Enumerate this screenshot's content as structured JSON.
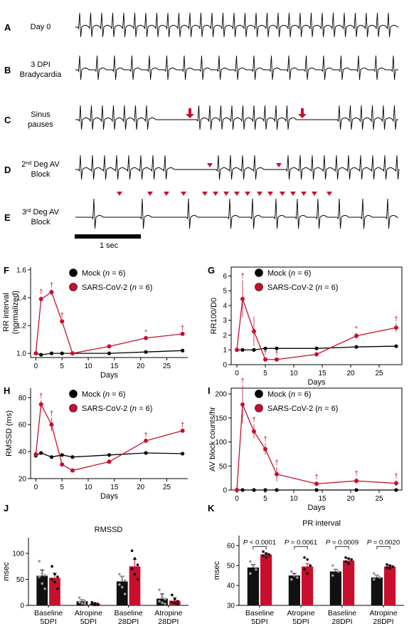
{
  "colors": {
    "mock": "#000000",
    "sars": "#c8102e",
    "sig": "#c8102e"
  },
  "ecg": {
    "panels": [
      {
        "letter": "A",
        "label_lines": [
          "Day 0"
        ],
        "type": "normal"
      },
      {
        "letter": "B",
        "label_lines": [
          "3 DPI",
          "Bradycardia"
        ],
        "type": "brady"
      },
      {
        "letter": "C",
        "label_lines": [
          "Sinus",
          "pauses"
        ],
        "type": "pauses"
      },
      {
        "letter": "D",
        "label_lines": [
          "2nd Deg AV",
          "Block"
        ],
        "type": "avb2"
      },
      {
        "letter": "E",
        "label_lines": [
          "3rd Deg AV",
          "Block"
        ],
        "type": "avb3"
      }
    ],
    "scale_label": "1 sec"
  },
  "chart_data": [
    {
      "panel": "F",
      "type": "line",
      "xlabel": "Days",
      "ylabel": "RR interval (normalized)",
      "xlim": [
        -1,
        29
      ],
      "ylim": [
        0.97,
        1.62
      ],
      "xticks": [
        0,
        5,
        10,
        15,
        20,
        25
      ],
      "yticks": [
        1.0,
        1.2,
        1.4,
        1.6
      ],
      "ytick_labels": [
        "1.0",
        "1.2",
        "1.4",
        "1.6"
      ],
      "box": false,
      "legend": [
        "Mock (n = 6)",
        "SARS-CoV-2 (n = 6)"
      ],
      "series": [
        {
          "name": "Mock (n = 6)",
          "x": [
            0,
            1,
            3,
            5,
            7,
            14,
            21,
            28
          ],
          "y": [
            1.0,
            0.99,
            1.0,
            1.0,
            1.0,
            1.0,
            1.01,
            1.02
          ]
        },
        {
          "name": "SARS-CoV-2 (n = 6)",
          "x": [
            0,
            1,
            3,
            5,
            7,
            14,
            21,
            28
          ],
          "y": [
            1.0,
            1.39,
            1.44,
            1.23,
            1.0,
            1.05,
            1.11,
            1.14
          ],
          "err": [
            0,
            0.02,
            0.02,
            0.01,
            0,
            0.005,
            0.01,
            0.01
          ]
        }
      ],
      "significance": [
        {
          "x": 1,
          "mark": "†"
        },
        {
          "x": 3,
          "mark": "†"
        },
        {
          "x": 5,
          "mark": "†"
        },
        {
          "x": 21,
          "mark": "*"
        },
        {
          "x": 28,
          "mark": "†"
        }
      ]
    },
    {
      "panel": "G",
      "type": "line",
      "xlabel": "Days",
      "ylabel": "RR100/D0",
      "xlim": [
        -1,
        29
      ],
      "ylim": [
        0,
        6.6
      ],
      "xticks": [
        0,
        5,
        10,
        15,
        20,
        25
      ],
      "yticks": [
        0,
        1,
        2,
        3,
        4,
        5,
        6
      ],
      "ytick_labels": [
        "0",
        "1",
        "2",
        "3",
        "4",
        "5",
        "6"
      ],
      "box": true,
      "legend": [
        "Mock (n = 6)",
        "SARS-CoV-2 (n = 6)"
      ],
      "series": [
        {
          "name": "Mock (n = 6)",
          "x": [
            0,
            1,
            3,
            5,
            7,
            14,
            21,
            28
          ],
          "y": [
            1.0,
            1.0,
            1.0,
            1.1,
            1.1,
            1.1,
            1.2,
            1.25
          ]
        },
        {
          "name": "SARS-CoV-2 (n = 6)",
          "x": [
            0,
            1,
            3,
            5,
            7,
            14,
            21,
            28
          ],
          "y": [
            1.0,
            4.45,
            2.25,
            0.35,
            0.35,
            0.7,
            1.95,
            2.5
          ],
          "err": [
            0,
            1.25,
            1.0,
            0.15,
            0.1,
            0.05,
            0.2,
            0.3
          ]
        }
      ],
      "significance": [
        {
          "x": 1,
          "mark": "†"
        },
        {
          "x": 5,
          "mark": "†"
        },
        {
          "x": 7,
          "mark": "†"
        },
        {
          "x": 21,
          "mark": "*"
        },
        {
          "x": 28,
          "mark": "†"
        }
      ]
    },
    {
      "panel": "H",
      "type": "line",
      "xlabel": "Days",
      "ylabel": "RMSSD (ms)",
      "xlim": [
        -1,
        29
      ],
      "ylim": [
        20,
        87
      ],
      "xticks": [
        0,
        5,
        10,
        15,
        20,
        25
      ],
      "yticks": [
        20,
        40,
        60,
        80
      ],
      "ytick_labels": [
        "20",
        "40",
        "60",
        "80"
      ],
      "box": false,
      "legend": [
        "Mock (n = 6)",
        "SARS-CoV-2 (n = 6)"
      ],
      "series": [
        {
          "name": "Mock (n = 6)",
          "x": [
            0,
            1,
            3,
            5,
            7,
            14,
            21,
            28
          ],
          "y": [
            37,
            39,
            36,
            37.5,
            36,
            37.5,
            39,
            38.5
          ]
        },
        {
          "name": "SARS-CoV-2 (n = 6)",
          "x": [
            0,
            1,
            3,
            5,
            7,
            14,
            21,
            28
          ],
          "y": [
            38,
            75,
            60,
            30.5,
            26,
            32.5,
            48,
            55.5
          ],
          "err": [
            0,
            3,
            5,
            1,
            1,
            1,
            1,
            1
          ]
        }
      ],
      "significance": [
        {
          "x": 1,
          "mark": "†"
        },
        {
          "x": 3,
          "mark": "†"
        },
        {
          "x": 21,
          "mark": "†"
        },
        {
          "x": 28,
          "mark": "†"
        }
      ]
    },
    {
      "panel": "I",
      "type": "line",
      "xlabel": "Days",
      "ylabel": "AV block counts/hr",
      "xlim": [
        -1,
        29
      ],
      "ylim": [
        0,
        212
      ],
      "xticks": [
        0,
        5,
        10,
        15,
        20,
        25
      ],
      "yticks": [
        0,
        50,
        100,
        150,
        200
      ],
      "ytick_labels": [
        "0",
        "50",
        "100",
        "150",
        "200"
      ],
      "box": true,
      "legend": [
        "Mock (n = 6)",
        "SARS-CoV-2 (n = 6)"
      ],
      "series": [
        {
          "name": "Mock (n = 6)",
          "x": [
            0,
            1,
            3,
            5,
            7,
            14,
            21,
            28
          ],
          "y": [
            0,
            0,
            0,
            0,
            0,
            0,
            0,
            0
          ]
        },
        {
          "name": "SARS-CoV-2 (n = 6)",
          "x": [
            0,
            1,
            3,
            5,
            7,
            14,
            21,
            28
          ],
          "y": [
            0,
            178,
            122,
            85,
            33,
            13,
            19,
            14
          ],
          "err": [
            0,
            40,
            15,
            12,
            15,
            5,
            6,
            6
          ]
        }
      ],
      "significance": [
        {
          "x": 1,
          "mark": "†"
        },
        {
          "x": 3,
          "mark": "†"
        },
        {
          "x": 5,
          "mark": "†"
        },
        {
          "x": 7,
          "mark": "†"
        },
        {
          "x": 14,
          "mark": "†"
        },
        {
          "x": 21,
          "mark": "†"
        },
        {
          "x": 28,
          "mark": "†"
        }
      ]
    },
    {
      "panel": "J",
      "type": "bar",
      "title": "RMSSD",
      "ylabel": "msec",
      "ylim": [
        0,
        130
      ],
      "yticks": [
        0,
        50,
        100
      ],
      "ytick_labels": [
        "0",
        "50",
        "100"
      ],
      "categories": [
        "Baseline 5DPI",
        "Atropine 5DPI",
        "Baseline 28DPI",
        "Atropine 28DPI"
      ],
      "category_lines": [
        [
          "Baseline",
          "5DPI"
        ],
        [
          "Atropine",
          "5DPI"
        ],
        [
          "Baseline",
          "28DPI"
        ],
        [
          "Atropine",
          "28DPI"
        ]
      ],
      "series": [
        {
          "name": "Mock",
          "values": [
            57,
            8,
            46,
            13
          ],
          "err": [
            11,
            3,
            10,
            9
          ],
          "points": [
            [
              85,
              62,
              58,
              55,
              42,
              32
            ],
            [
              15,
              10,
              8,
              6,
              4,
              3
            ],
            [
              60,
              55,
              48,
              40,
              35,
              22
            ],
            [
              30,
              15,
              12,
              8,
              5,
              3
            ]
          ]
        },
        {
          "name": "SARS-CoV-2",
          "values": [
            53,
            3,
            75,
            9
          ],
          "err": [
            9,
            1,
            13,
            6
          ],
          "points": [
            [
              75,
              60,
              55,
              50,
              45,
              32
            ],
            [
              6,
              4,
              3,
              2,
              1,
              1
            ],
            [
              105,
              90,
              78,
              70,
              60,
              50
            ],
            [
              20,
              12,
              8,
              6,
              4,
              2
            ]
          ]
        }
      ]
    },
    {
      "panel": "K",
      "type": "bar",
      "title": "PR interval",
      "ylabel": "msec",
      "ylim": [
        30,
        65
      ],
      "yticks": [
        30,
        40,
        50,
        60
      ],
      "ytick_labels": [
        "30",
        "40",
        "50",
        "60"
      ],
      "categories": [
        "Baseline 5DPI",
        "Atropine 5DPI",
        "Baseline 28DPI",
        "Atropine 28DPI"
      ],
      "category_lines": [
        [
          "Baseline",
          "5DPI"
        ],
        [
          "Atropine",
          "5DPI"
        ],
        [
          "Baseline",
          "28DPI"
        ],
        [
          "Atropine",
          "28DPI"
        ]
      ],
      "series": [
        {
          "name": "Mock",
          "values": [
            49,
            45,
            47,
            44
          ],
          "err": [
            1.5,
            1.0,
            1.0,
            1.0
          ],
          "points": [
            [
              52,
              50,
              48,
              46
            ],
            [
              47,
              45,
              44,
              43
            ],
            [
              50,
              48,
              47,
              45
            ],
            [
              46,
              45,
              44,
              43
            ]
          ]
        },
        {
          "name": "SARS-CoV-2",
          "values": [
            55.5,
            49.5,
            52.5,
            49.5
          ],
          "err": [
            0.8,
            1.5,
            0.8,
            0.5
          ],
          "points": [
            [
              57,
              56,
              55.5,
              55,
              54
            ],
            [
              54,
              53,
              50,
              48,
              46
            ],
            [
              54,
              53.5,
              53,
              52,
              51
            ],
            [
              50.5,
              50,
              49.5,
              49,
              48.5
            ]
          ]
        }
      ],
      "comparisons": [
        "P < 0.0001",
        "P = 0.0061",
        "P = 0.0009",
        "P = 0.0020"
      ]
    }
  ]
}
